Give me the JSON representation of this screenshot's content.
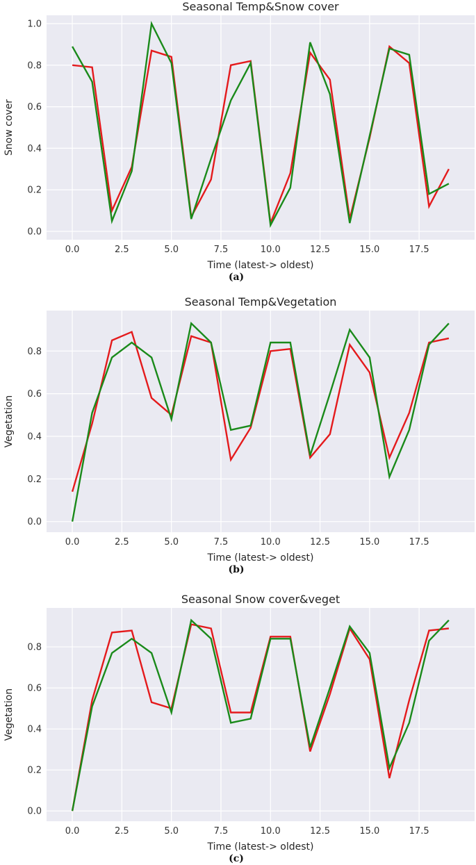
{
  "chart_data": [
    {
      "type": "line",
      "title": "Seasonal Temp&Snow cover",
      "xlabel": "Time (latest-> oldest)",
      "ylabel": "Snow cover",
      "caption": "(a)",
      "xlim": [
        -1.3,
        20.3
      ],
      "ylim": [
        -0.04,
        1.04
      ],
      "xticks": [
        0,
        2.5,
        5,
        7.5,
        10,
        12.5,
        15,
        17.5
      ],
      "xtick_labels": [
        "0.0",
        "2.5",
        "5.0",
        "7.5",
        "10.0",
        "12.5",
        "15.0",
        "17.5"
      ],
      "yticks": [
        0,
        0.2,
        0.4,
        0.6,
        0.8,
        1.0
      ],
      "ytick_labels": [
        "0.0",
        "0.2",
        "0.4",
        "0.6",
        "0.8",
        "1.0"
      ],
      "grid": true,
      "x": [
        0,
        1,
        2,
        3,
        4,
        5,
        6,
        7,
        8,
        9,
        10,
        11,
        12,
        13,
        14,
        15,
        16,
        17,
        18,
        19
      ],
      "series": [
        {
          "name": "red",
          "color": "#e41a1c",
          "values": [
            0.8,
            0.79,
            0.1,
            0.31,
            0.87,
            0.84,
            0.07,
            0.25,
            0.8,
            0.82,
            0.04,
            0.28,
            0.86,
            0.73,
            0.06,
            0.45,
            0.89,
            0.81,
            0.12,
            0.3
          ]
        },
        {
          "name": "green",
          "color": "#1a8a1a",
          "values": [
            0.89,
            0.72,
            0.05,
            0.29,
            1.0,
            0.81,
            0.06,
            0.35,
            0.63,
            0.81,
            0.03,
            0.21,
            0.91,
            0.66,
            0.04,
            0.46,
            0.88,
            0.85,
            0.18,
            0.23
          ]
        }
      ]
    },
    {
      "type": "line",
      "title": "Seasonal Temp&Vegetation",
      "xlabel": "Time (latest-> oldest)",
      "ylabel": "Vegetation",
      "caption": "(b)",
      "xlim": [
        -1.3,
        20.3
      ],
      "ylim": [
        -0.05,
        0.99
      ],
      "xticks": [
        0,
        2.5,
        5,
        7.5,
        10,
        12.5,
        15,
        17.5
      ],
      "xtick_labels": [
        "0.0",
        "2.5",
        "5.0",
        "7.5",
        "10.0",
        "12.5",
        "15.0",
        "17.5"
      ],
      "yticks": [
        0,
        0.2,
        0.4,
        0.6,
        0.8
      ],
      "ytick_labels": [
        "0.0",
        "0.2",
        "0.4",
        "0.6",
        "0.8"
      ],
      "grid": true,
      "x": [
        0,
        1,
        2,
        3,
        4,
        5,
        6,
        7,
        8,
        9,
        10,
        11,
        12,
        13,
        14,
        15,
        16,
        17,
        18,
        19
      ],
      "series": [
        {
          "name": "red",
          "color": "#e41a1c",
          "values": [
            0.14,
            0.46,
            0.85,
            0.89,
            0.58,
            0.5,
            0.87,
            0.84,
            0.29,
            0.44,
            0.8,
            0.81,
            0.3,
            0.41,
            0.83,
            0.7,
            0.3,
            0.51,
            0.84,
            0.86
          ]
        },
        {
          "name": "green",
          "color": "#1a8a1a",
          "values": [
            0.0,
            0.51,
            0.77,
            0.84,
            0.77,
            0.48,
            0.93,
            0.84,
            0.43,
            0.45,
            0.84,
            0.84,
            0.31,
            0.6,
            0.9,
            0.77,
            0.21,
            0.43,
            0.83,
            0.93
          ]
        }
      ]
    },
    {
      "type": "line",
      "title": "Seasonal Snow cover&veget",
      "xlabel": "Time (latest-> oldest)",
      "ylabel": "Vegetation",
      "caption": "(c)",
      "xlim": [
        -1.3,
        20.3
      ],
      "ylim": [
        -0.05,
        0.99
      ],
      "xticks": [
        0,
        2.5,
        5,
        7.5,
        10,
        12.5,
        15,
        17.5
      ],
      "xtick_labels": [
        "0.0",
        "2.5",
        "5.0",
        "7.5",
        "10.0",
        "12.5",
        "15.0",
        "17.5"
      ],
      "yticks": [
        0,
        0.2,
        0.4,
        0.6,
        0.8
      ],
      "ytick_labels": [
        "0.0",
        "0.2",
        "0.4",
        "0.6",
        "0.8"
      ],
      "grid": true,
      "x": [
        0,
        1,
        2,
        3,
        4,
        5,
        6,
        7,
        8,
        9,
        10,
        11,
        12,
        13,
        14,
        15,
        16,
        17,
        18,
        19
      ],
      "series": [
        {
          "name": "red",
          "color": "#e41a1c",
          "values": [
            0.0,
            0.54,
            0.87,
            0.88,
            0.53,
            0.5,
            0.91,
            0.89,
            0.48,
            0.48,
            0.85,
            0.85,
            0.29,
            0.57,
            0.89,
            0.74,
            0.16,
            0.54,
            0.88,
            0.89
          ]
        },
        {
          "name": "green",
          "color": "#1a8a1a",
          "values": [
            0.0,
            0.51,
            0.77,
            0.84,
            0.77,
            0.48,
            0.93,
            0.84,
            0.43,
            0.45,
            0.84,
            0.84,
            0.31,
            0.6,
            0.9,
            0.77,
            0.21,
            0.43,
            0.83,
            0.93
          ]
        }
      ]
    }
  ]
}
